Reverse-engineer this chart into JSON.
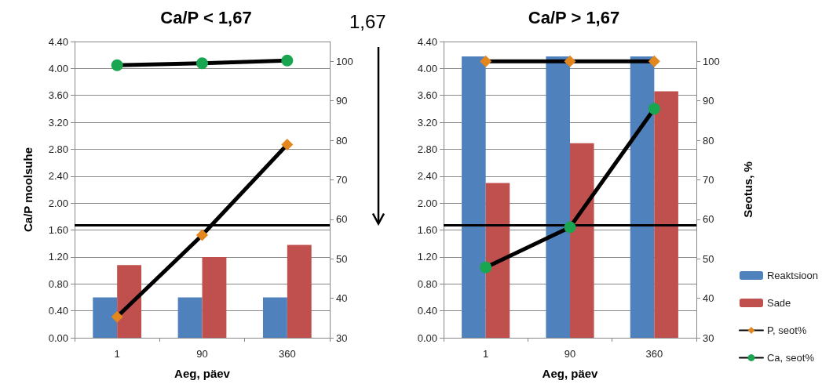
{
  "chart_data": [
    {
      "type": "bar",
      "title": "Ca/P < 1,67",
      "xlabel": "Aeg, päev",
      "ylabel": "Ca/P moolsuhe",
      "categories": [
        "1",
        "90",
        "360"
      ],
      "series": [
        {
          "color": "#4f81bd",
          "values": [
            0.6,
            0.6,
            0.6
          ]
        },
        {
          "color": "#c0504d",
          "values": [
            1.08,
            1.2,
            1.38
          ]
        },
        {
          "type": "line",
          "axis": "y2",
          "color": "#e3861d",
          "marker": "diamond",
          "values": [
            35.3,
            56,
            78.9
          ]
        },
        {
          "type": "line",
          "axis": "y2",
          "color": "#1aa651",
          "marker": "circle",
          "values": [
            99,
            99.5,
            100.2
          ]
        }
      ],
      "ylim": [
        0,
        4.4
      ],
      "yticks": [
        {
          "value": 0,
          "label": "0.00"
        },
        {
          "value": 0.4,
          "label": "0.40"
        },
        {
          "value": 0.8,
          "label": "0.80"
        },
        {
          "value": 1.2,
          "label": "1.20"
        },
        {
          "value": 1.6,
          "label": "1.60"
        },
        {
          "value": 2,
          "label": "2.00"
        },
        {
          "value": 2.4,
          "label": "2.40"
        },
        {
          "value": 2.8,
          "label": "2.80"
        },
        {
          "value": 3.2,
          "label": "3.20"
        },
        {
          "value": 3.6,
          "label": "3.60"
        },
        {
          "value": 4,
          "label": "4.00"
        },
        {
          "value": 4.4,
          "label": "4.40"
        }
      ],
      "y2lim": [
        30,
        105
      ],
      "y2ticks": [
        30,
        40,
        50,
        60,
        70,
        80,
        90,
        100
      ],
      "ref_lines": [
        {
          "axis": "y",
          "value": 1.67,
          "label": "1,67"
        }
      ],
      "grid": "y",
      "legend": false
    },
    {
      "type": "bar",
      "title": "Ca/P > 1,67",
      "xlabel": "Aeg, päev",
      "y2label": "Seotus, %",
      "categories": [
        "1",
        "90",
        "360"
      ],
      "series": [
        {
          "name": "Reaktsioon",
          "color": "#4f81bd",
          "values": [
            4.18,
            4.18,
            4.18
          ]
        },
        {
          "name": "Sade",
          "color": "#c0504d",
          "values": [
            2.3,
            2.89,
            3.66
          ]
        },
        {
          "type": "line",
          "name": "P, seot%",
          "axis": "y2",
          "color": "#e3861d",
          "marker": "diamond",
          "values": [
            100,
            100,
            100
          ]
        },
        {
          "type": "line",
          "name": "Ca, seot%",
          "axis": "y2",
          "color": "#1aa651",
          "marker": "circle",
          "values": [
            47.8,
            58,
            88
          ]
        }
      ],
      "ylim": [
        0,
        4.4
      ],
      "yticks": [
        {
          "value": 0,
          "label": "0.00"
        },
        {
          "value": 0.4,
          "label": "0.40"
        },
        {
          "value": 0.8,
          "label": "0.80"
        },
        {
          "value": 1.2,
          "label": "1.20"
        },
        {
          "value": 1.6,
          "label": "1.60"
        },
        {
          "value": 2,
          "label": "2.00"
        },
        {
          "value": 2.4,
          "label": "2.40"
        },
        {
          "value": 2.8,
          "label": "2.80"
        },
        {
          "value": 3.2,
          "label": "3.20"
        },
        {
          "value": 3.6,
          "label": "3.60"
        },
        {
          "value": 4,
          "label": "4.00"
        },
        {
          "value": 4.4,
          "label": "4.40"
        }
      ],
      "y2lim": [
        30,
        105
      ],
      "y2ticks": [
        30,
        40,
        50,
        60,
        70,
        80,
        90,
        100
      ],
      "ref_lines": [
        {
          "axis": "y",
          "value": 1.67
        }
      ],
      "grid": "y",
      "legend": "bottom right"
    }
  ]
}
